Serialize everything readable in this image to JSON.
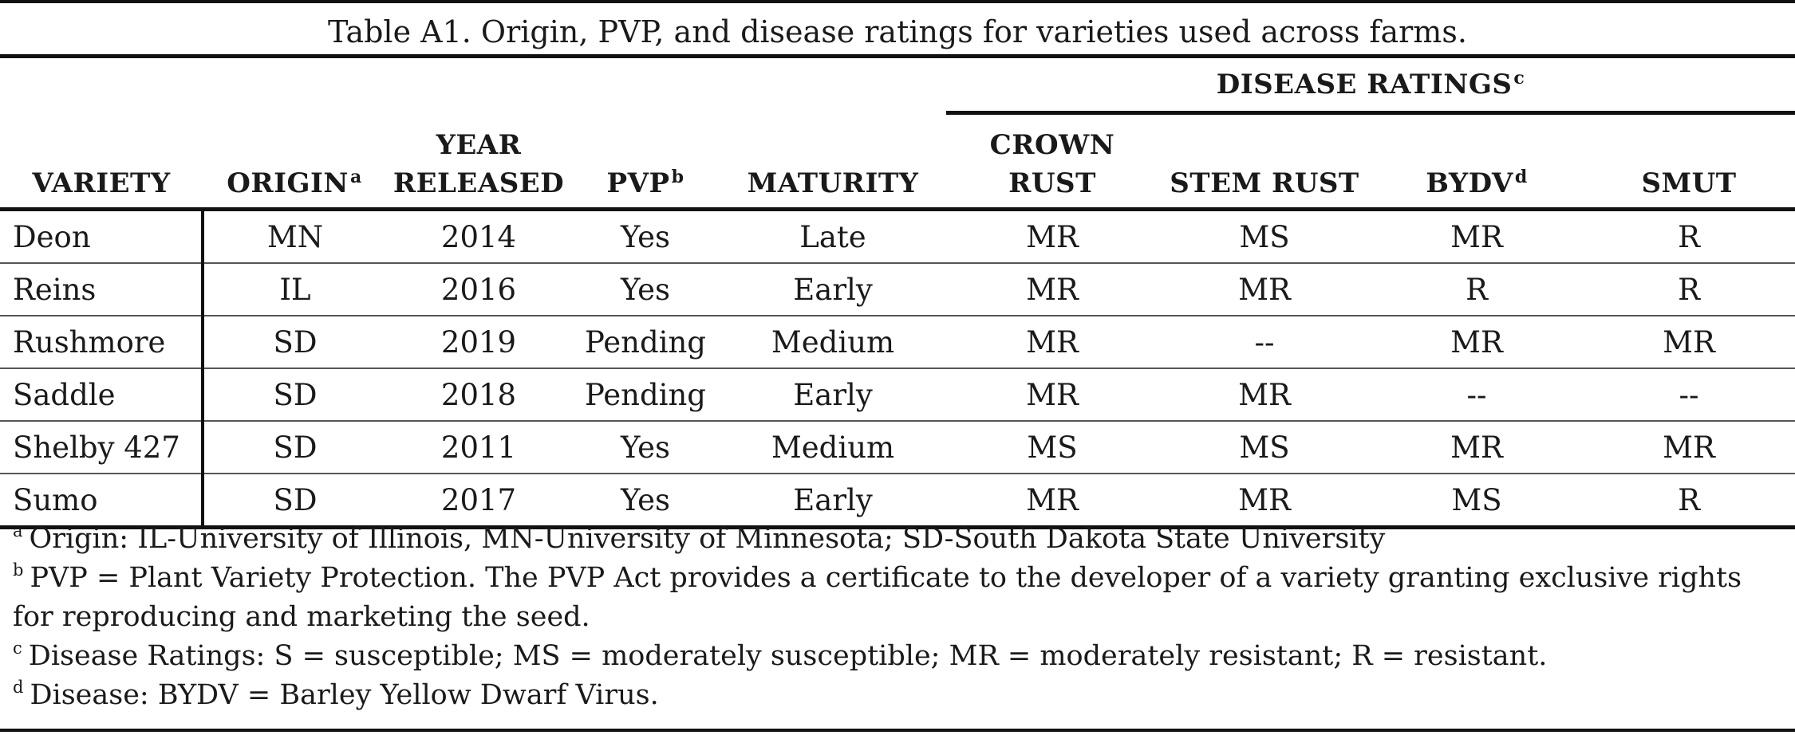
{
  "table": {
    "caption": "Table A1. Origin, PVP, and disease ratings for varieties used across farms.",
    "group_header": "DISEASE RATINGS",
    "group_header_mark": "c",
    "columns": {
      "variety": "VARIETY",
      "origin": "ORIGIN",
      "origin_mark": "a",
      "year_line1": "YEAR",
      "year_line2": "RELEASED",
      "pvp": "PVP",
      "pvp_mark": "b",
      "maturity": "MATURITY",
      "crown_line1": "CROWN",
      "crown_line2": "RUST",
      "stem_rust": "STEM RUST",
      "bydv": "BYDV",
      "bydv_mark": "d",
      "smut": "SMUT"
    },
    "rows": [
      {
        "variety": "Deon",
        "origin": "MN",
        "year": "2014",
        "pvp": "Yes",
        "maturity": "Late",
        "crown_rust": "MR",
        "stem_rust": "MS",
        "bydv": "MR",
        "smut": "R"
      },
      {
        "variety": "Reins",
        "origin": "IL",
        "year": "2016",
        "pvp": "Yes",
        "maturity": "Early",
        "crown_rust": "MR",
        "stem_rust": "MR",
        "bydv": "R",
        "smut": "R"
      },
      {
        "variety": "Rushmore",
        "origin": "SD",
        "year": "2019",
        "pvp": "Pending",
        "maturity": "Medium",
        "crown_rust": "MR",
        "stem_rust": "--",
        "bydv": "MR",
        "smut": "MR"
      },
      {
        "variety": "Saddle",
        "origin": "SD",
        "year": "2018",
        "pvp": "Pending",
        "maturity": "Early",
        "crown_rust": "MR",
        "stem_rust": "MR",
        "bydv": "--",
        "smut": "--"
      },
      {
        "variety": "Shelby 427",
        "origin": "SD",
        "year": "2011",
        "pvp": "Yes",
        "maturity": "Medium",
        "crown_rust": "MS",
        "stem_rust": "MS",
        "bydv": "MR",
        "smut": "MR"
      },
      {
        "variety": "Sumo",
        "origin": "SD",
        "year": "2017",
        "pvp": "Yes",
        "maturity": "Early",
        "crown_rust": "MR",
        "stem_rust": "MR",
        "bydv": "MS",
        "smut": "R"
      }
    ]
  },
  "footnotes": [
    {
      "mark": "a",
      "text": "Origin:  IL-University of Illinois, MN-University of Minnesota; SD-South Dakota State University"
    },
    {
      "mark": "b",
      "text": "PVP = Plant Variety Protection. The PVP Act provides a certificate to the developer of a variety granting exclusive rights for reproducing and marketing the seed."
    },
    {
      "mark": "c",
      "text": "Disease Ratings:  S = susceptible; MS = moderately susceptible; MR = moderately resistant; R = resistant."
    },
    {
      "mark": "d",
      "text": "Disease:  BYDV = Barley Yellow Dwarf Virus."
    }
  ]
}
